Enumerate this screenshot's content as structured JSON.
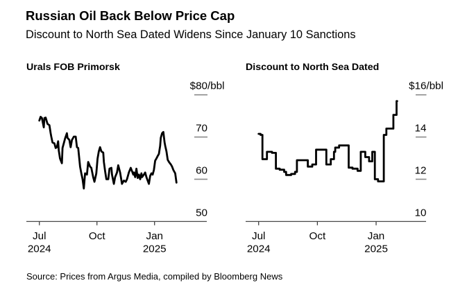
{
  "header": {
    "title": "Russian Oil Back Below Price Cap",
    "subtitle": "Discount to North Sea Dated Widens Since January 10 Sanctions"
  },
  "footer": {
    "source": "Source: Prices from Argus Media, compiled by Bloomberg News"
  },
  "chart_data": [
    {
      "type": "line",
      "title": "Urals FOB Primorsk",
      "xlabel": "",
      "ylabel": "",
      "y_unit_prefix": "$",
      "y_unit_suffix": "/bbl",
      "ylim": [
        50,
        80
      ],
      "yticks": [
        50,
        60,
        70,
        80
      ],
      "xlim": [
        "2024-06-10",
        "2025-03-25"
      ],
      "xticks": [
        {
          "date": "2024-07-01",
          "label": "Jul",
          "sublabel": "2024"
        },
        {
          "date": "2024-10-01",
          "label": "Oct"
        },
        {
          "date": "2025-01-01",
          "label": "Jan",
          "sublabel": "2025"
        }
      ],
      "grid": false,
      "legend": "none",
      "series": [
        {
          "name": "Urals FOB Primorsk",
          "color": "#000000",
          "interpolation": "linear",
          "points": [
            [
              "2024-07-01",
              73.9
            ],
            [
              "2024-07-03",
              74.8
            ],
            [
              "2024-07-05",
              74.5
            ],
            [
              "2024-07-08",
              72.3
            ],
            [
              "2024-07-09",
              74.5
            ],
            [
              "2024-07-11",
              74.6
            ],
            [
              "2024-07-14",
              73.1
            ],
            [
              "2024-07-17",
              72.8
            ],
            [
              "2024-07-19",
              70.9
            ],
            [
              "2024-07-20",
              70.1
            ],
            [
              "2024-07-22",
              68.7
            ],
            [
              "2024-07-25",
              68.5
            ],
            [
              "2024-07-27",
              67.4
            ],
            [
              "2024-07-29",
              67.6
            ],
            [
              "2024-07-31",
              69.0
            ],
            [
              "2024-08-01",
              66.8
            ],
            [
              "2024-08-03",
              64.9
            ],
            [
              "2024-08-06",
              63.8
            ],
            [
              "2024-08-07",
              67.4
            ],
            [
              "2024-08-09",
              68.5
            ],
            [
              "2024-08-11",
              69.6
            ],
            [
              "2024-08-14",
              70.9
            ],
            [
              "2024-08-15",
              69.8
            ],
            [
              "2024-08-18",
              69.3
            ],
            [
              "2024-08-20",
              67.6
            ],
            [
              "2024-08-22",
              69.3
            ],
            [
              "2024-08-25",
              70.1
            ],
            [
              "2024-08-28",
              70.1
            ],
            [
              "2024-08-30",
              67.6
            ],
            [
              "2024-09-01",
              67.4
            ],
            [
              "2024-09-04",
              63.0
            ],
            [
              "2024-09-06",
              61.4
            ],
            [
              "2024-09-08",
              60.0
            ],
            [
              "2024-09-10",
              57.8
            ],
            [
              "2024-09-12",
              61.4
            ],
            [
              "2024-09-15",
              61.1
            ],
            [
              "2024-09-17",
              64.1
            ],
            [
              "2024-09-20",
              63.0
            ],
            [
              "2024-09-22",
              62.7
            ],
            [
              "2024-09-25",
              60.5
            ],
            [
              "2024-09-27",
              59.4
            ],
            [
              "2024-09-30",
              61.4
            ],
            [
              "2024-10-02",
              64.9
            ],
            [
              "2024-10-04",
              66.6
            ],
            [
              "2024-10-06",
              67.6
            ],
            [
              "2024-10-08",
              66.6
            ],
            [
              "2024-10-11",
              66.3
            ],
            [
              "2024-10-12",
              64.1
            ],
            [
              "2024-10-14",
              61.9
            ],
            [
              "2024-10-16",
              60.0
            ],
            [
              "2024-10-19",
              60.0
            ],
            [
              "2024-10-21",
              62.5
            ],
            [
              "2024-10-24",
              62.7
            ],
            [
              "2024-10-25",
              61.1
            ],
            [
              "2024-10-28",
              58.9
            ],
            [
              "2024-10-30",
              60.5
            ],
            [
              "2024-11-02",
              61.6
            ],
            [
              "2024-11-04",
              63.3
            ],
            [
              "2024-11-07",
              61.6
            ],
            [
              "2024-11-10",
              58.9
            ],
            [
              "2024-11-13",
              59.7
            ],
            [
              "2024-11-16",
              59.4
            ],
            [
              "2024-11-18",
              60.0
            ],
            [
              "2024-11-21",
              61.6
            ],
            [
              "2024-11-24",
              62.7
            ],
            [
              "2024-11-26",
              61.9
            ],
            [
              "2024-11-28",
              61.1
            ],
            [
              "2024-11-29",
              61.6
            ],
            [
              "2024-12-01",
              60.5
            ],
            [
              "2024-12-03",
              62.5
            ],
            [
              "2024-12-05",
              60.3
            ],
            [
              "2024-12-07",
              61.1
            ],
            [
              "2024-12-09",
              60.0
            ],
            [
              "2024-12-11",
              61.4
            ],
            [
              "2024-12-12",
              60.5
            ],
            [
              "2024-12-15",
              61.1
            ],
            [
              "2024-12-17",
              61.6
            ],
            [
              "2024-12-19",
              60.5
            ],
            [
              "2024-12-21",
              59.7
            ],
            [
              "2024-12-23",
              58.9
            ],
            [
              "2024-12-25",
              60.8
            ],
            [
              "2024-12-27",
              61.4
            ],
            [
              "2024-12-29",
              61.1
            ],
            [
              "2024-12-31",
              62.2
            ],
            [
              "2025-01-02",
              64.4
            ],
            [
              "2025-01-04",
              64.9
            ],
            [
              "2025-01-06",
              65.5
            ],
            [
              "2025-01-08",
              66.0
            ],
            [
              "2025-01-10",
              67.9
            ],
            [
              "2025-01-11",
              69.8
            ],
            [
              "2025-01-13",
              70.9
            ],
            [
              "2025-01-15",
              71.2
            ],
            [
              "2025-01-17",
              68.7
            ],
            [
              "2025-01-18",
              67.9
            ],
            [
              "2025-01-20",
              66.6
            ],
            [
              "2025-01-22",
              64.6
            ],
            [
              "2025-01-24",
              64.1
            ],
            [
              "2025-01-27",
              63.5
            ],
            [
              "2025-01-29",
              63.0
            ],
            [
              "2025-01-31",
              62.2
            ],
            [
              "2025-02-03",
              61.4
            ],
            [
              "2025-02-05",
              59.2
            ]
          ]
        }
      ]
    },
    {
      "type": "line",
      "title": "Discount to North Sea Dated",
      "xlabel": "",
      "ylabel": "",
      "y_unit_prefix": "$",
      "y_unit_suffix": "/bbl",
      "ylim": [
        10,
        16
      ],
      "yticks": [
        10,
        12,
        14,
        16
      ],
      "xlim": [
        "2024-06-10",
        "2025-03-25"
      ],
      "xticks": [
        {
          "date": "2024-07-01",
          "label": "Jul",
          "sublabel": "2024"
        },
        {
          "date": "2024-10-01",
          "label": "Oct"
        },
        {
          "date": "2025-01-01",
          "label": "Jan",
          "sublabel": "2025"
        }
      ],
      "grid": false,
      "legend": "none",
      "series": [
        {
          "name": "Discount to North Sea Dated",
          "color": "#000000",
          "interpolation": "step-after",
          "points": [
            [
              "2024-07-01",
              14.15
            ],
            [
              "2024-07-04",
              14.1
            ],
            [
              "2024-07-07",
              12.95
            ],
            [
              "2024-07-14",
              13.3
            ],
            [
              "2024-07-22",
              13.25
            ],
            [
              "2024-07-28",
              12.5
            ],
            [
              "2024-08-03",
              12.45
            ],
            [
              "2024-08-10",
              12.35
            ],
            [
              "2024-08-13",
              12.2
            ],
            [
              "2024-08-21",
              12.25
            ],
            [
              "2024-08-27",
              12.35
            ],
            [
              "2024-08-30",
              12.9
            ],
            [
              "2024-09-16",
              12.6
            ],
            [
              "2024-09-23",
              12.7
            ],
            [
              "2024-09-29",
              13.4
            ],
            [
              "2024-10-15",
              12.7
            ],
            [
              "2024-10-22",
              12.95
            ],
            [
              "2024-10-27",
              13.3
            ],
            [
              "2024-10-29",
              13.5
            ],
            [
              "2024-11-04",
              13.6
            ],
            [
              "2024-11-19",
              12.55
            ],
            [
              "2024-11-25",
              12.5
            ],
            [
              "2024-12-03",
              12.4
            ],
            [
              "2024-12-08",
              13.3
            ],
            [
              "2024-12-15",
              13.05
            ],
            [
              "2024-12-21",
              12.85
            ],
            [
              "2024-12-26",
              13.3
            ],
            [
              "2024-12-30",
              12.0
            ],
            [
              "2025-01-04",
              11.9
            ],
            [
              "2025-01-13",
              14.1
            ],
            [
              "2025-01-17",
              14.4
            ],
            [
              "2025-01-28",
              15.05
            ],
            [
              "2025-02-02",
              15.7
            ],
            [
              "2025-02-03",
              15.7
            ]
          ]
        }
      ]
    }
  ]
}
